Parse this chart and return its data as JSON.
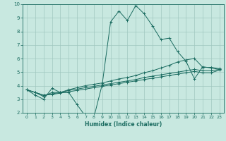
{
  "title": "",
  "xlabel": "Humidex (Indice chaleur)",
  "bg_color": "#c8e8e0",
  "grid_color": "#a0c8c0",
  "line_color": "#1a6b60",
  "tick_color": "#1a6b60",
  "xlim": [
    -0.5,
    23.5
  ],
  "ylim": [
    2,
    10
  ],
  "xticks": [
    0,
    1,
    2,
    3,
    4,
    5,
    6,
    7,
    8,
    9,
    10,
    11,
    12,
    13,
    14,
    15,
    16,
    17,
    18,
    19,
    20,
    21,
    22,
    23
  ],
  "yticks": [
    2,
    3,
    4,
    5,
    6,
    7,
    8,
    9,
    10
  ],
  "series": [
    {
      "x": [
        0,
        1,
        2,
        3,
        4,
        5,
        6,
        7,
        8,
        9,
        10,
        11,
        12,
        13,
        14,
        15,
        16,
        17,
        18,
        19,
        20,
        21,
        22,
        23
      ],
      "y": [
        3.7,
        3.3,
        3.0,
        3.8,
        3.5,
        3.5,
        2.6,
        1.75,
        1.65,
        4.1,
        8.7,
        9.5,
        8.8,
        9.9,
        9.3,
        8.4,
        7.4,
        7.5,
        6.5,
        5.8,
        4.5,
        5.4,
        5.3,
        5.2
      ]
    },
    {
      "x": [
        0,
        1,
        2,
        3,
        4,
        5,
        6,
        7,
        8,
        9,
        10,
        11,
        12,
        13,
        14,
        15,
        16,
        17,
        18,
        19,
        20,
        21,
        22,
        23
      ],
      "y": [
        3.7,
        3.5,
        3.2,
        3.5,
        3.5,
        3.7,
        3.85,
        4.0,
        4.1,
        4.2,
        4.35,
        4.5,
        4.6,
        4.75,
        4.95,
        5.1,
        5.3,
        5.5,
        5.75,
        5.9,
        6.0,
        5.35,
        5.35,
        5.25
      ]
    },
    {
      "x": [
        0,
        1,
        2,
        3,
        4,
        5,
        6,
        7,
        8,
        9,
        10,
        11,
        12,
        13,
        14,
        15,
        16,
        17,
        18,
        19,
        20,
        21,
        22,
        23
      ],
      "y": [
        3.7,
        3.5,
        3.3,
        3.4,
        3.5,
        3.65,
        3.75,
        3.85,
        3.95,
        4.05,
        4.15,
        4.25,
        4.35,
        4.45,
        4.6,
        4.7,
        4.8,
        4.9,
        5.0,
        5.1,
        5.2,
        5.1,
        5.1,
        5.2
      ]
    },
    {
      "x": [
        0,
        1,
        2,
        3,
        4,
        5,
        6,
        7,
        8,
        9,
        10,
        11,
        12,
        13,
        14,
        15,
        16,
        17,
        18,
        19,
        20,
        21,
        22,
        23
      ],
      "y": [
        3.7,
        3.5,
        3.3,
        3.35,
        3.45,
        3.55,
        3.65,
        3.75,
        3.85,
        3.95,
        4.05,
        4.15,
        4.25,
        4.35,
        4.45,
        4.55,
        4.65,
        4.75,
        4.85,
        4.95,
        5.05,
        4.95,
        4.95,
        5.15
      ]
    }
  ]
}
